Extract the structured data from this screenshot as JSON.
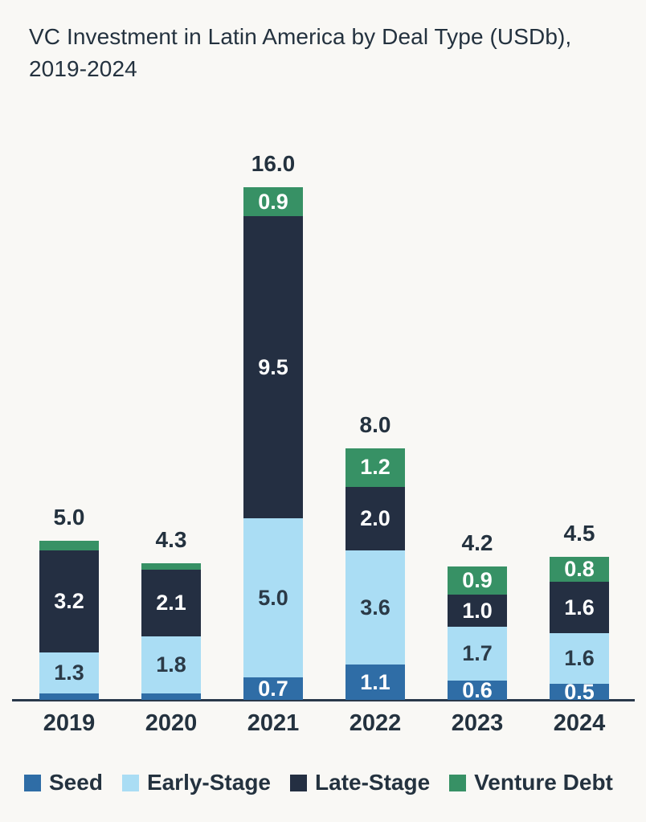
{
  "title": "VC Investment in Latin America by Deal Type (USDb), 2019-2024",
  "colors": {
    "background": "#f9f8f5",
    "text_dark": "#24323f",
    "axis_line": "#29384a",
    "seed": "#2f6da6",
    "early_stage": "#aaddf4",
    "late_stage": "#242f42",
    "venture_debt": "#379165"
  },
  "chart_data": {
    "type": "bar",
    "stacked": true,
    "title": "VC Investment in Latin America by Deal Type (USDb), 2019-2024",
    "xlabel": "",
    "ylabel": "",
    "ylim": [
      0,
      16.1
    ],
    "grid": false,
    "legend_position": "bottom",
    "categories": [
      "2019",
      "2020",
      "2021",
      "2022",
      "2023",
      "2024"
    ],
    "series": [
      {
        "name": "Seed",
        "color": "#2f6da6",
        "label_color": "#ffffff",
        "values": [
          0.2,
          0.2,
          0.7,
          1.1,
          0.6,
          0.5
        ],
        "labels": [
          "",
          "",
          "0.7",
          "1.1",
          "0.6",
          "0.5"
        ]
      },
      {
        "name": "Early-Stage",
        "color": "#aaddf4",
        "label_color": "#2b3a47",
        "values": [
          1.3,
          1.8,
          5.0,
          3.6,
          1.7,
          1.6
        ],
        "labels": [
          "1.3",
          "1.8",
          "5.0",
          "3.6",
          "1.7",
          "1.6"
        ]
      },
      {
        "name": "Late-Stage",
        "color": "#242f42",
        "label_color": "#ffffff",
        "values": [
          3.2,
          2.1,
          9.5,
          2.0,
          1.0,
          1.6
        ],
        "labels": [
          "3.2",
          "2.1",
          "9.5",
          "2.0",
          "1.0",
          "1.6"
        ]
      },
      {
        "name": "Venture Debt",
        "color": "#379165",
        "label_color": "#ffffff",
        "values": [
          0.3,
          0.2,
          0.9,
          1.2,
          0.9,
          0.8
        ],
        "labels": [
          "",
          "",
          "0.9",
          "1.2",
          "0.9",
          "0.8"
        ]
      }
    ],
    "totals": [
      "5.0",
      "4.3",
      "16.0",
      "8.0",
      "4.2",
      "4.5"
    ]
  }
}
